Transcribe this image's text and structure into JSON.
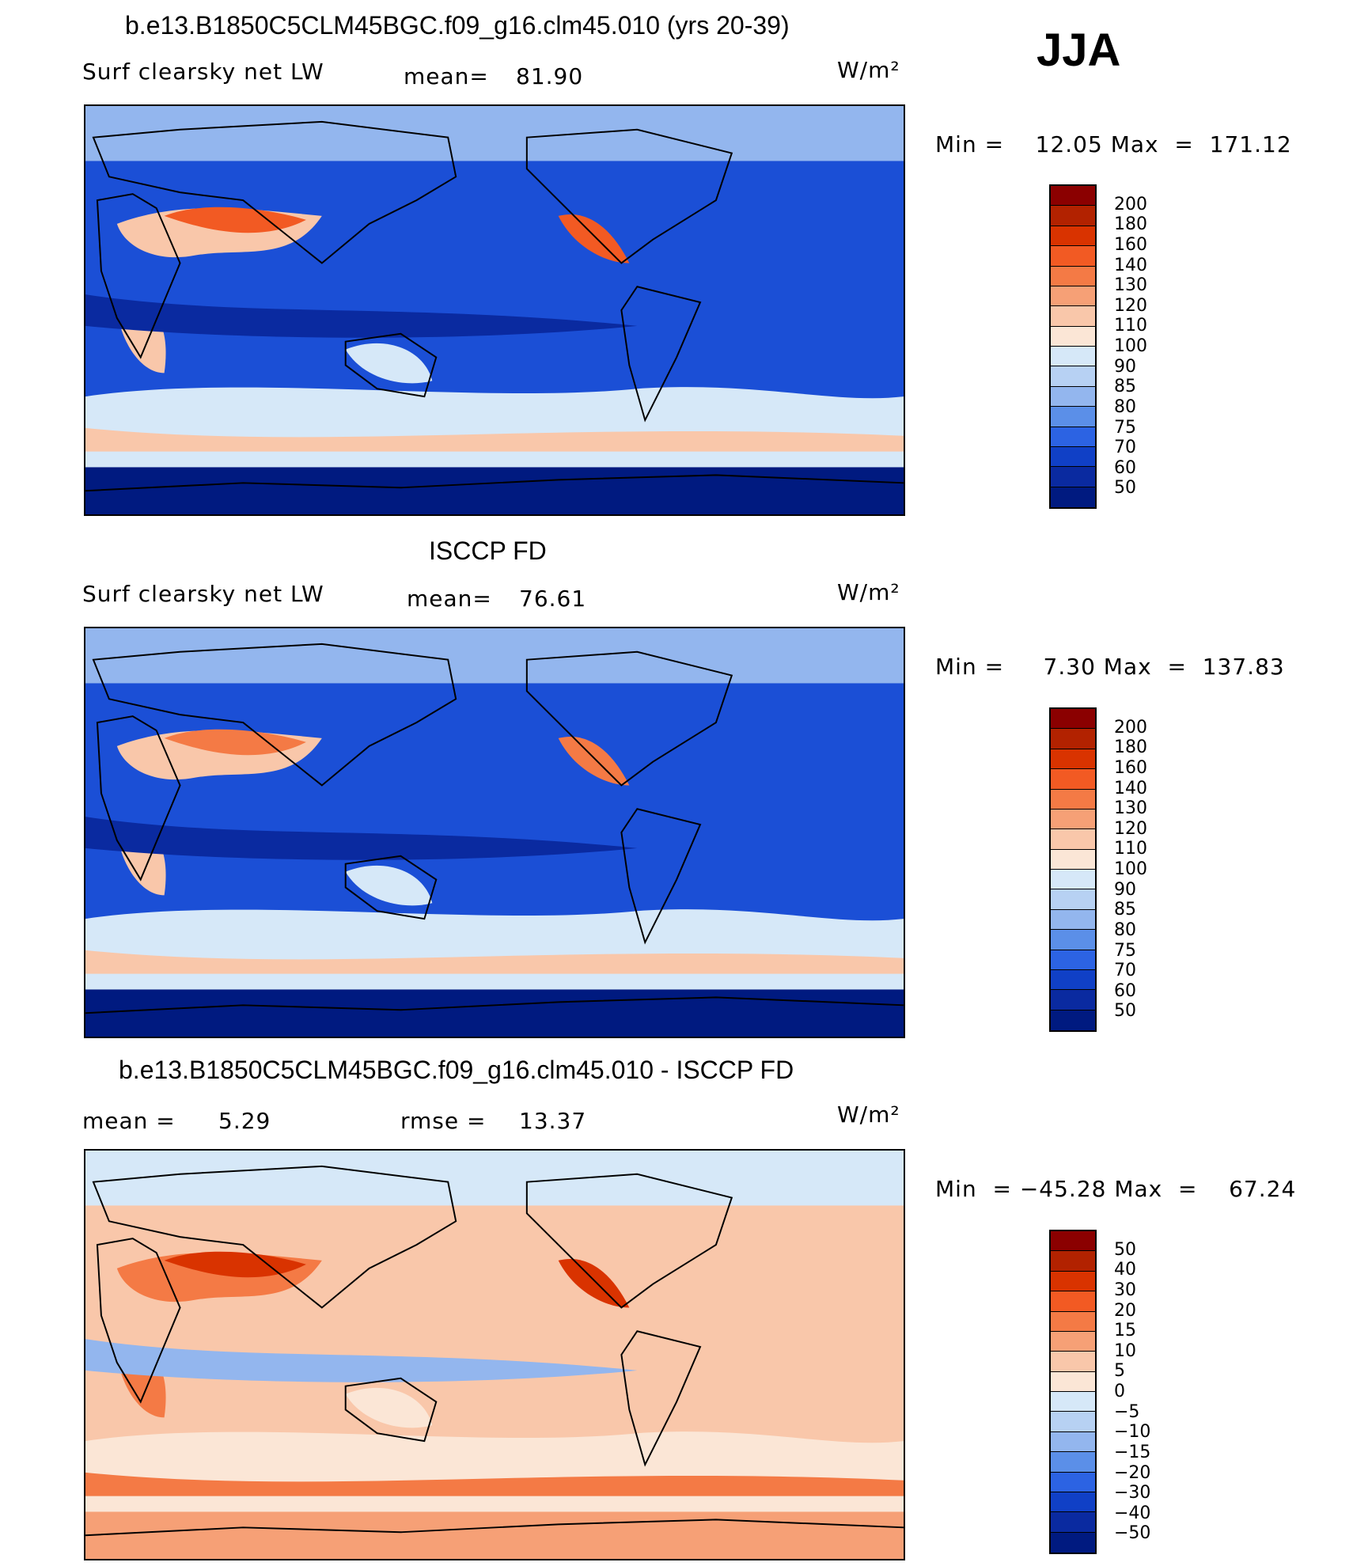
{
  "season": "JJA",
  "panels": [
    {
      "title": "b.e13.B1850C5CLM45BGC.f09_g16.clm45.010 (yrs 20-39)",
      "left_label": "Surf clearsky net LW",
      "stat_label": "mean=",
      "stat_value": "81.90",
      "units": "W/m²",
      "minmax": "Min =    12.05 Max  =  171.12",
      "colorbar_labels": [
        "200",
        "180",
        "160",
        "140",
        "130",
        "120",
        "110",
        "100",
        "90",
        "85",
        "80",
        "75",
        "70",
        "60",
        "50"
      ],
      "colorbar_colors": [
        "#8b0000",
        "#b22200",
        "#d93300",
        "#f25a23",
        "#f47a45",
        "#f6a076",
        "#f9c7aa",
        "#fbe6d6",
        "#d6e8f8",
        "#b7d1f3",
        "#93b6ee",
        "#5b8fe8",
        "#2c63e3",
        "#1040c6",
        "#0a2aa0",
        "#001a80"
      ],
      "map_colors": {
        "ocean": "#1b4fd6",
        "cold_band": "#0a2aa0",
        "polar": "#001a80",
        "mid": "#93b6ee",
        "light": "#d6e8f8",
        "warm": "#f9c7aa",
        "hot": "#f25a23"
      }
    },
    {
      "title": "ISCCP FD",
      "left_label": "Surf clearsky net LW",
      "stat_label": "mean=",
      "stat_value": "76.61",
      "units": "W/m²",
      "minmax": "Min =     7.30 Max  =  137.83",
      "colorbar_labels": [
        "200",
        "180",
        "160",
        "140",
        "130",
        "120",
        "110",
        "100",
        "90",
        "85",
        "80",
        "75",
        "70",
        "60",
        "50"
      ],
      "colorbar_colors": [
        "#8b0000",
        "#b22200",
        "#d93300",
        "#f25a23",
        "#f47a45",
        "#f6a076",
        "#f9c7aa",
        "#fbe6d6",
        "#d6e8f8",
        "#b7d1f3",
        "#93b6ee",
        "#5b8fe8",
        "#2c63e3",
        "#1040c6",
        "#0a2aa0",
        "#001a80"
      ],
      "map_colors": {
        "ocean": "#1b4fd6",
        "cold_band": "#0a2aa0",
        "polar": "#001a80",
        "mid": "#93b6ee",
        "light": "#d6e8f8",
        "warm": "#f9c7aa",
        "hot": "#f47a45"
      }
    },
    {
      "title": "b.e13.B1850C5CLM45BGC.f09_g16.clm45.010 - ISCCP FD",
      "left_label": "mean =",
      "left_value": "5.29",
      "stat_label": "rmse =",
      "stat_value": "13.37",
      "units": "W/m²",
      "minmax": "Min  = −45.28 Max  =    67.24",
      "colorbar_labels": [
        "50",
        "40",
        "30",
        "20",
        "15",
        "10",
        "5",
        "0",
        "−5",
        "−10",
        "−15",
        "−20",
        "−30",
        "−40",
        "−50"
      ],
      "colorbar_colors": [
        "#8b0000",
        "#b22200",
        "#d93300",
        "#f25a23",
        "#f47a45",
        "#f6a076",
        "#f9c7aa",
        "#fbe6d6",
        "#d6e8f8",
        "#b7d1f3",
        "#93b6ee",
        "#5b8fe8",
        "#2c63e3",
        "#1040c6",
        "#0a2aa0",
        "#001a80"
      ],
      "map_colors": {
        "ocean": "#f9c7aa",
        "cold_band": "#93b6ee",
        "polar": "#f6a076",
        "mid": "#d6e8f8",
        "light": "#fbe6d6",
        "warm": "#f47a45",
        "hot": "#d93300"
      }
    }
  ]
}
